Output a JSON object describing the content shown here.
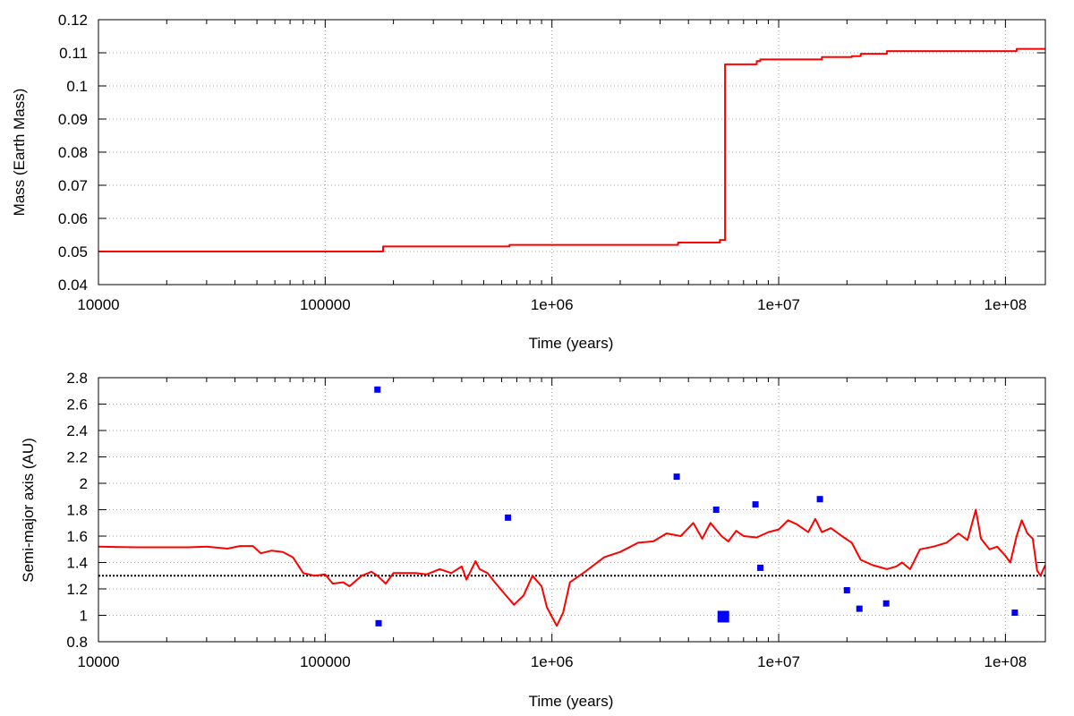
{
  "chart_data": [
    {
      "type": "line",
      "xscale": "log",
      "xlabel": "Time (years)",
      "ylabel": "Mass (Earth Mass)",
      "xlim": [
        10000,
        150000000
      ],
      "ylim": [
        0.04,
        0.12
      ],
      "xticks": [
        10000,
        100000,
        1000000,
        10000000,
        100000000
      ],
      "xtick_labels": [
        "10000",
        "100000",
        "1e+06",
        "1e+07",
        "1e+08"
      ],
      "yticks": [
        0.04,
        0.05,
        0.06,
        0.07,
        0.08,
        0.09,
        0.1,
        0.11,
        0.12
      ],
      "ytick_labels": [
        "0.04",
        "0.05",
        "0.06",
        "0.07",
        "0.08",
        "0.09",
        "0.1",
        "0.11",
        "0.12"
      ],
      "grid": true,
      "series": [
        {
          "color": "#ff0000",
          "step": true,
          "points": [
            [
              10000,
              0.05
            ],
            [
              165000,
              0.05
            ],
            [
              180000,
              0.0515
            ],
            [
              640000,
              0.0515
            ],
            [
              650000,
              0.052
            ],
            [
              3500000,
              0.052
            ],
            [
              3600000,
              0.0527
            ],
            [
              5300000,
              0.0527
            ],
            [
              5500000,
              0.0535
            ],
            [
              5800000,
              0.1065
            ],
            [
              7800000,
              0.1065
            ],
            [
              8000000,
              0.1075
            ],
            [
              8300000,
              0.108
            ],
            [
              15000000,
              0.108
            ],
            [
              15500000,
              0.1087
            ],
            [
              20000000,
              0.1087
            ],
            [
              21000000,
              0.109
            ],
            [
              23000000,
              0.1097
            ],
            [
              29000000,
              0.1097
            ],
            [
              30000000,
              0.1105
            ],
            [
              110000000,
              0.1105
            ],
            [
              112000000,
              0.1112
            ],
            [
              150000000,
              0.1112
            ]
          ]
        }
      ]
    },
    {
      "type": "line",
      "xscale": "log",
      "xlabel": "Time (years)",
      "ylabel": "Semi-major axis (AU)",
      "xlim": [
        10000,
        150000000
      ],
      "ylim": [
        0.8,
        2.8
      ],
      "xticks": [
        10000,
        100000,
        1000000,
        10000000,
        100000000
      ],
      "xtick_labels": [
        "10000",
        "100000",
        "1e+06",
        "1e+07",
        "1e+08"
      ],
      "yticks": [
        0.8,
        1,
        1.2,
        1.4,
        1.6,
        1.8,
        2,
        2.2,
        2.4,
        2.6,
        2.8
      ],
      "ytick_labels": [
        "0.8",
        "1",
        "1.2",
        "1.4",
        "1.6",
        "1.8",
        "2",
        "2.2",
        "2.4",
        "2.6",
        "2.8"
      ],
      "grid": true,
      "reference_line": {
        "y": 1.3,
        "style": "dotted",
        "color": "#000000"
      },
      "series": [
        {
          "color": "#ff0000",
          "points": [
            [
              10000,
              1.52
            ],
            [
              15000,
              1.515
            ],
            [
              25000,
              1.515
            ],
            [
              30000,
              1.52
            ],
            [
              37000,
              1.505
            ],
            [
              42000,
              1.525
            ],
            [
              48000,
              1.525
            ],
            [
              52000,
              1.47
            ],
            [
              58000,
              1.49
            ],
            [
              65000,
              1.48
            ],
            [
              72000,
              1.44
            ],
            [
              80000,
              1.32
            ],
            [
              90000,
              1.3
            ],
            [
              100000,
              1.31
            ],
            [
              108000,
              1.24
            ],
            [
              120000,
              1.25
            ],
            [
              128000,
              1.22
            ],
            [
              145000,
              1.3
            ],
            [
              160000,
              1.33
            ],
            [
              170000,
              1.3
            ],
            [
              185000,
              1.24
            ],
            [
              200000,
              1.32
            ],
            [
              250000,
              1.32
            ],
            [
              280000,
              1.31
            ],
            [
              320000,
              1.35
            ],
            [
              360000,
              1.32
            ],
            [
              400000,
              1.37
            ],
            [
              420000,
              1.27
            ],
            [
              460000,
              1.41
            ],
            [
              480000,
              1.35
            ],
            [
              520000,
              1.32
            ],
            [
              560000,
              1.25
            ],
            [
              620000,
              1.16
            ],
            [
              680000,
              1.08
            ],
            [
              750000,
              1.15
            ],
            [
              820000,
              1.3
            ],
            [
              900000,
              1.22
            ],
            [
              950000,
              1.06
            ],
            [
              1050000,
              0.92
            ],
            [
              1120000,
              1.02
            ],
            [
              1200000,
              1.25
            ],
            [
              1400000,
              1.33
            ],
            [
              1700000,
              1.44
            ],
            [
              2000000,
              1.48
            ],
            [
              2400000,
              1.55
            ],
            [
              2800000,
              1.56
            ],
            [
              3200000,
              1.62
            ],
            [
              3700000,
              1.6
            ],
            [
              4200000,
              1.7
            ],
            [
              4600000,
              1.58
            ],
            [
              5000000,
              1.7
            ],
            [
              5600000,
              1.6
            ],
            [
              6000000,
              1.56
            ],
            [
              6500000,
              1.64
            ],
            [
              7000000,
              1.6
            ],
            [
              8000000,
              1.59
            ],
            [
              9000000,
              1.63
            ],
            [
              10000000,
              1.65
            ],
            [
              11000000,
              1.72
            ],
            [
              12000000,
              1.69
            ],
            [
              13500000,
              1.63
            ],
            [
              14500000,
              1.73
            ],
            [
              15500000,
              1.63
            ],
            [
              17000000,
              1.66
            ],
            [
              19000000,
              1.6
            ],
            [
              21000000,
              1.55
            ],
            [
              23000000,
              1.42
            ],
            [
              26000000,
              1.38
            ],
            [
              30000000,
              1.35
            ],
            [
              33000000,
              1.37
            ],
            [
              35000000,
              1.4
            ],
            [
              38000000,
              1.35
            ],
            [
              42000000,
              1.5
            ],
            [
              48000000,
              1.52
            ],
            [
              55000000,
              1.55
            ],
            [
              62000000,
              1.62
            ],
            [
              68000000,
              1.57
            ],
            [
              74000000,
              1.8
            ],
            [
              78000000,
              1.58
            ],
            [
              85000000,
              1.5
            ],
            [
              92000000,
              1.52
            ],
            [
              100000000,
              1.45
            ],
            [
              105000000,
              1.4
            ],
            [
              112000000,
              1.6
            ],
            [
              118000000,
              1.72
            ],
            [
              125000000,
              1.62
            ],
            [
              132000000,
              1.58
            ],
            [
              138000000,
              1.34
            ],
            [
              143000000,
              1.3
            ],
            [
              147000000,
              1.35
            ],
            [
              150000000,
              1.38
            ]
          ]
        }
      ],
      "markers": {
        "color": "#0000ff",
        "points": [
          {
            "x": 170000,
            "y": 2.71,
            "size": "small"
          },
          {
            "x": 172000,
            "y": 0.94,
            "size": "small"
          },
          {
            "x": 640000,
            "y": 1.74,
            "size": "small"
          },
          {
            "x": 3550000,
            "y": 2.05,
            "size": "small"
          },
          {
            "x": 5300000,
            "y": 1.8,
            "size": "small"
          },
          {
            "x": 5700000,
            "y": 0.99,
            "size": "large"
          },
          {
            "x": 7900000,
            "y": 1.84,
            "size": "small"
          },
          {
            "x": 8300000,
            "y": 1.36,
            "size": "small"
          },
          {
            "x": 15200000,
            "y": 1.88,
            "size": "small"
          },
          {
            "x": 20000000,
            "y": 1.19,
            "size": "small"
          },
          {
            "x": 22700000,
            "y": 1.05,
            "size": "small"
          },
          {
            "x": 29800000,
            "y": 1.09,
            "size": "small"
          },
          {
            "x": 110000000,
            "y": 1.02,
            "size": "small"
          }
        ]
      }
    }
  ]
}
